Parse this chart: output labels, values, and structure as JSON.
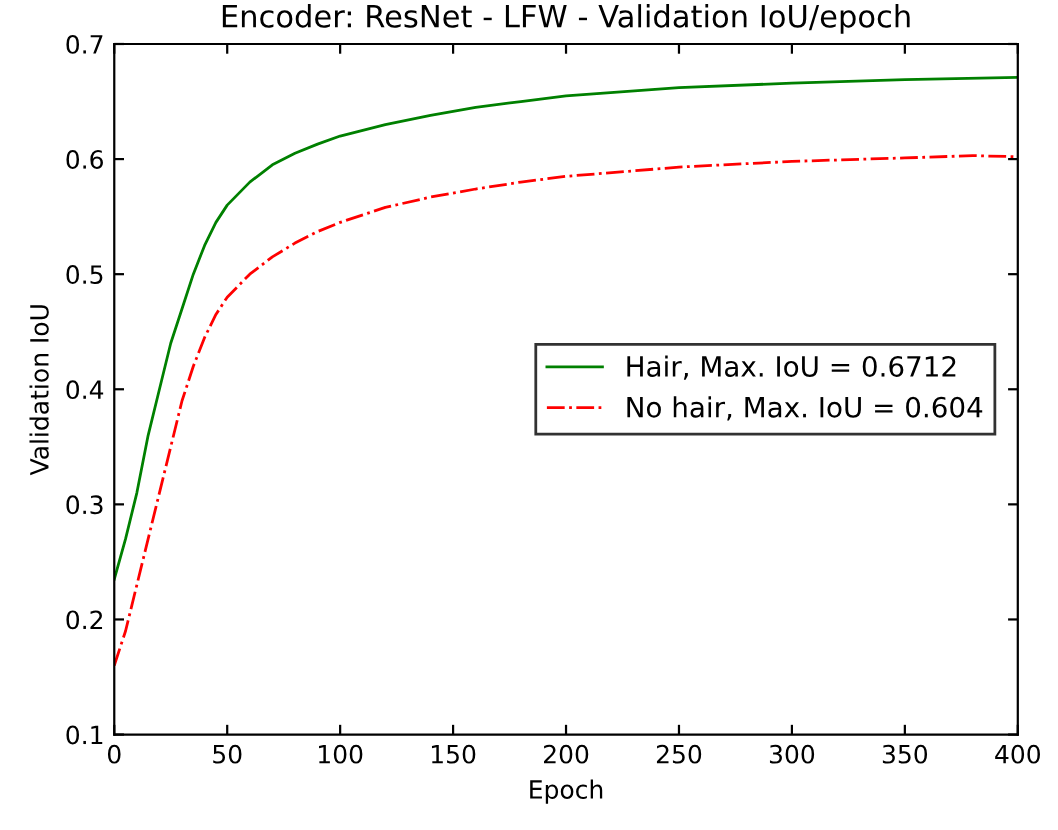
{
  "chart_data": {
    "type": "line",
    "title": "Encoder: ResNet - LFW - Validation IoU/epoch",
    "xlabel": "Epoch",
    "ylabel": "Validation IoU",
    "xlim": [
      0,
      400
    ],
    "xticks": [
      0,
      50,
      100,
      150,
      200,
      250,
      300,
      350,
      400
    ],
    "ylim": [
      0.1,
      0.7
    ],
    "yticks": [
      0.1,
      0.2,
      0.3,
      0.4,
      0.5,
      0.6,
      0.7
    ],
    "grid": false,
    "legend": "right",
    "marker": "none",
    "series": [
      {
        "name": "Hair, Max. IoU = 0.6712",
        "color": "#008000",
        "line_style": "solid",
        "x": [
          0,
          5,
          10,
          15,
          20,
          25,
          30,
          35,
          40,
          45,
          50,
          60,
          70,
          80,
          90,
          100,
          120,
          140,
          160,
          180,
          200,
          250,
          300,
          350,
          400
        ],
        "values": [
          0.235,
          0.27,
          0.31,
          0.36,
          0.4,
          0.44,
          0.47,
          0.5,
          0.525,
          0.545,
          0.56,
          0.58,
          0.595,
          0.605,
          0.613,
          0.62,
          0.63,
          0.638,
          0.645,
          0.65,
          0.655,
          0.662,
          0.666,
          0.669,
          0.671
        ]
      },
      {
        "name": "No hair, Max. IoU = 0.604",
        "color": "#ff0000",
        "line_style": "dashdot",
        "x": [
          0,
          5,
          10,
          15,
          20,
          25,
          30,
          35,
          40,
          45,
          50,
          60,
          70,
          80,
          90,
          100,
          120,
          140,
          160,
          180,
          200,
          250,
          300,
          350,
          380,
          400
        ],
        "values": [
          0.16,
          0.19,
          0.23,
          0.27,
          0.31,
          0.35,
          0.39,
          0.42,
          0.445,
          0.465,
          0.48,
          0.5,
          0.515,
          0.527,
          0.537,
          0.545,
          0.558,
          0.567,
          0.574,
          0.58,
          0.585,
          0.593,
          0.598,
          0.601,
          0.603,
          0.602
        ]
      }
    ]
  }
}
